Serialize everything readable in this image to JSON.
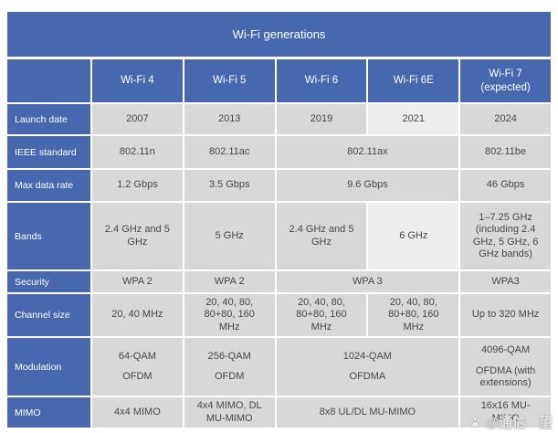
{
  "chart_data": {
    "type": "table",
    "title": "Wi-Fi generations",
    "columns": [
      "Wi-Fi 4",
      "Wi-Fi 5",
      "Wi-Fi 6",
      "Wi-Fi 6E",
      "Wi-Fi 7\n(expected)"
    ],
    "rows": [
      {
        "label": "Launch date",
        "cells": [
          {
            "text": "2007"
          },
          {
            "text": "2013"
          },
          {
            "text": "2019"
          },
          {
            "text": "2021",
            "light": true
          },
          {
            "text": "2024"
          }
        ]
      },
      {
        "label": "IEEE standard",
        "cells": [
          {
            "text": "802.11n"
          },
          {
            "text": "802.11ac"
          },
          {
            "text": "802.11ax",
            "span": 2
          },
          {
            "text": "802.11be"
          }
        ]
      },
      {
        "label": "Max data rate",
        "cells": [
          {
            "text": "1.2 Gbps"
          },
          {
            "text": "3.5 Gbps"
          },
          {
            "text": "9.6 Gbps",
            "span": 2
          },
          {
            "text": "46 Gbps"
          }
        ]
      },
      {
        "label": "Bands",
        "cells": [
          {
            "text": "2.4 GHz and 5\nGHz"
          },
          {
            "text": "5 GHz"
          },
          {
            "text": "2.4 GHz and 5\nGHz"
          },
          {
            "text": "6 GHz",
            "light": true
          },
          {
            "text": "1–7.25 GHz\n(including 2.4\nGHz, 5 GHz, 6\nGHz bands)"
          }
        ]
      },
      {
        "label": "Security",
        "cells": [
          {
            "text": "WPA 2"
          },
          {
            "text": "WPA 2"
          },
          {
            "text": "WPA 3",
            "span": 2
          },
          {
            "text": "WPA3"
          }
        ]
      },
      {
        "label": "Channel size",
        "cells": [
          {
            "text": "20, 40 MHz"
          },
          {
            "text": "20, 40, 80,\n80+80, 160\nMHz"
          },
          {
            "text": "20, 40, 80,\n80+80, 160\nMHz"
          },
          {
            "text": "20, 40, 80,\n80+80, 160\nMHz"
          },
          {
            "text": "Up to 320 MHz"
          }
        ]
      },
      {
        "label": "Modulation",
        "cells": [
          {
            "paras": [
              "64-QAM",
              "OFDM"
            ]
          },
          {
            "paras": [
              "256-QAM",
              "OFDM"
            ]
          },
          {
            "paras": [
              "1024-QAM",
              "OFDMA"
            ],
            "span": 2
          },
          {
            "paras": [
              "4096-QAM",
              "OFDMA (with\nextensions)"
            ]
          }
        ]
      },
      {
        "label": "MIMO",
        "cells": [
          {
            "text": "4x4 MIMO"
          },
          {
            "text": "4x4 MIMO, DL\nMU-MIMO"
          },
          {
            "text": "8x8 UL/DL MU-MIMO",
            "span": 2
          },
          {
            "text": "16x16 MU-\nMIMO"
          }
        ]
      }
    ]
  },
  "watermark": {
    "icon": "paw-icon",
    "handle": "@通信",
    "suffix": "望"
  },
  "colors": {
    "header_blue": "#4767AF",
    "cell_gray": "#D8D8D8",
    "cell_light": "#EDEDEE",
    "body_text": "#44474C",
    "header_text": "#FFFFFF",
    "page_bg": "#FFFFFF"
  }
}
